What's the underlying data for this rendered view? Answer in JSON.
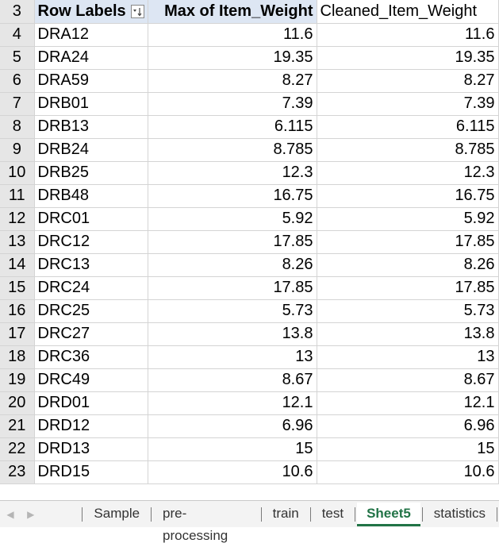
{
  "header": {
    "row_number": "3",
    "col_a": "Row Labels",
    "col_b": "Max of Item_Weight",
    "col_c": "Cleaned_Item_Weight"
  },
  "rows": [
    {
      "num": "4",
      "label": "DRA12",
      "max": "11.6",
      "cleaned": "11.6"
    },
    {
      "num": "5",
      "label": "DRA24",
      "max": "19.35",
      "cleaned": "19.35"
    },
    {
      "num": "6",
      "label": "DRA59",
      "max": "8.27",
      "cleaned": "8.27"
    },
    {
      "num": "7",
      "label": "DRB01",
      "max": "7.39",
      "cleaned": "7.39"
    },
    {
      "num": "8",
      "label": "DRB13",
      "max": "6.115",
      "cleaned": "6.115"
    },
    {
      "num": "9",
      "label": "DRB24",
      "max": "8.785",
      "cleaned": "8.785"
    },
    {
      "num": "10",
      "label": "DRB25",
      "max": "12.3",
      "cleaned": "12.3"
    },
    {
      "num": "11",
      "label": "DRB48",
      "max": "16.75",
      "cleaned": "16.75"
    },
    {
      "num": "12",
      "label": "DRC01",
      "max": "5.92",
      "cleaned": "5.92"
    },
    {
      "num": "13",
      "label": "DRC12",
      "max": "17.85",
      "cleaned": "17.85"
    },
    {
      "num": "14",
      "label": "DRC13",
      "max": "8.26",
      "cleaned": "8.26"
    },
    {
      "num": "15",
      "label": "DRC24",
      "max": "17.85",
      "cleaned": "17.85"
    },
    {
      "num": "16",
      "label": "DRC25",
      "max": "5.73",
      "cleaned": "5.73"
    },
    {
      "num": "17",
      "label": "DRC27",
      "max": "13.8",
      "cleaned": "13.8"
    },
    {
      "num": "18",
      "label": "DRC36",
      "max": "13",
      "cleaned": "13"
    },
    {
      "num": "19",
      "label": "DRC49",
      "max": "8.67",
      "cleaned": "8.67"
    },
    {
      "num": "20",
      "label": "DRD01",
      "max": "12.1",
      "cleaned": "12.1"
    },
    {
      "num": "21",
      "label": "DRD12",
      "max": "6.96",
      "cleaned": "6.96"
    },
    {
      "num": "22",
      "label": "DRD13",
      "max": "15",
      "cleaned": "15"
    },
    {
      "num": "23",
      "label": "DRD15",
      "max": "10.6",
      "cleaned": "10.6"
    }
  ],
  "tabs": [
    {
      "label": "Sample",
      "active": false
    },
    {
      "label": "pre-processing",
      "active": false
    },
    {
      "label": "train",
      "active": false
    },
    {
      "label": "test",
      "active": false
    },
    {
      "label": "Sheet5",
      "active": true
    },
    {
      "label": "statistics",
      "active": false
    }
  ],
  "icons": {
    "prev_sheet": "chevron-left-icon",
    "next_sheet": "chevron-right-icon",
    "filter": "filter-sort-icon"
  },
  "colors": {
    "pivot_header_bg": "#dde6f3",
    "active_tab": "#217346",
    "row_header_bg": "#e6e6e6"
  }
}
